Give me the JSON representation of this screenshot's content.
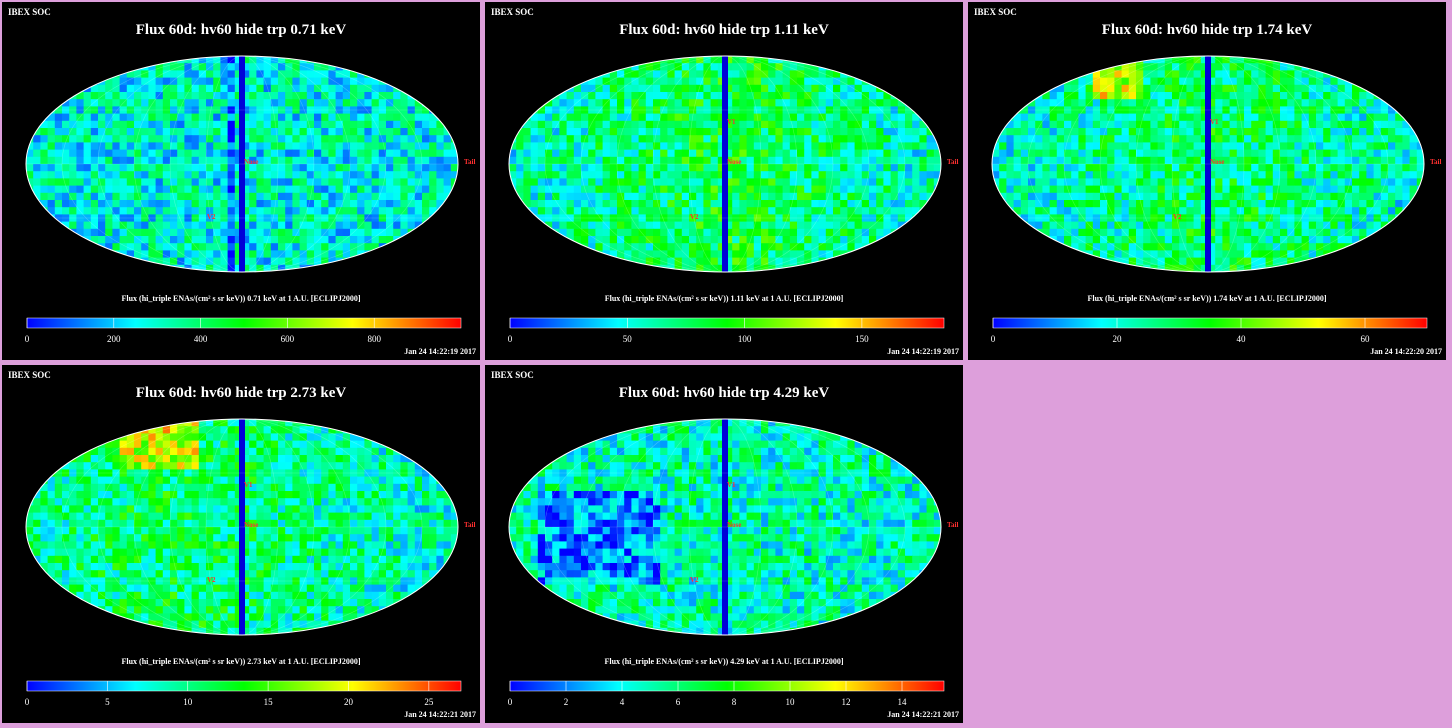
{
  "panels": [
    {
      "header": "IBEX SOC",
      "title": "Flux 60d: hv60 hide trp 0.71 keV",
      "caption": "Flux (hi_triple ENAs/(cm² s sr keV)) 0.71 keV at 1 A.U. [ECLIPJ2000]",
      "timestamp": "Jan 24 14:22:19 2017",
      "colorbar_ticks": [
        "0",
        "200",
        "400",
        "600",
        "800"
      ],
      "markers": [
        "V2",
        "Nose",
        "Tail"
      ]
    },
    {
      "header": "IBEX SOC",
      "title": "Flux 60d: hv60 hide trp 1.11 keV",
      "caption": "Flux (hi_triple ENAs/(cm² s sr keV)) 1.11 keV at 1 A.U. [ECLIPJ2000]",
      "timestamp": "Jan 24 14:22:19 2017",
      "colorbar_ticks": [
        "0",
        "50",
        "100",
        "150"
      ],
      "markers": [
        "V1",
        "V2",
        "Nose",
        "Tail"
      ]
    },
    {
      "header": "IBEX SOC",
      "title": "Flux 60d: hv60 hide trp 1.74 keV",
      "caption": "Flux (hi_triple ENAs/(cm² s sr keV)) 1.74 keV at 1 A.U. [ECLIPJ2000]",
      "timestamp": "Jan 24 14:22:20 2017",
      "colorbar_ticks": [
        "0",
        "20",
        "40",
        "60"
      ],
      "markers": [
        "V1",
        "V2",
        "Nose",
        "Tail"
      ]
    },
    {
      "header": "IBEX SOC",
      "title": "Flux 60d: hv60 hide trp 2.73 keV",
      "caption": "Flux (hi_triple ENAs/(cm² s sr keV)) 2.73 keV at 1 A.U. [ECLIPJ2000]",
      "timestamp": "Jan 24 14:22:21 2017",
      "colorbar_ticks": [
        "0",
        "5",
        "10",
        "15",
        "20",
        "25"
      ],
      "markers": [
        "V1",
        "V2",
        "Nose",
        "Tail"
      ]
    },
    {
      "header": "IBEX SOC",
      "title": "Flux 60d: hv60 hide trp 4.29 keV",
      "caption": "Flux (hi_triple ENAs/(cm² s sr keV)) 4.29 keV at 1 A.U. [ECLIPJ2000]",
      "timestamp": "Jan 24 14:22:21 2017",
      "colorbar_ticks": [
        "0",
        "2",
        "4",
        "6",
        "8",
        "10",
        "12",
        "14"
      ],
      "markers": [
        "V1",
        "V2",
        "Nose",
        "Tail"
      ]
    }
  ],
  "chart_data": [
    {
      "type": "heatmap",
      "projection": "Mollweide (all-sky)",
      "title": "Flux 60d: hv60 hide trp 0.71 keV",
      "colorbar_range": [
        0,
        1000
      ],
      "colormap": [
        "#0000ff",
        "#00ffff",
        "#00ff00",
        "#ffff00",
        "#ff0000"
      ],
      "grid": true,
      "longitude_labels": [
        "-60",
        "-30",
        "0",
        "-90",
        "120",
        "150",
        "180",
        "150",
        "60",
        "90"
      ],
      "latitude_labels": [
        "60",
        "30",
        "-30",
        "-60"
      ]
    },
    {
      "type": "heatmap",
      "projection": "Mollweide (all-sky)",
      "title": "Flux 60d: hv60 hide trp 1.11 keV",
      "colorbar_range": [
        0,
        185
      ],
      "colormap": [
        "#0000ff",
        "#00ffff",
        "#00ff00",
        "#ffff00",
        "#ff0000"
      ],
      "grid": true,
      "longitude_labels": [
        "60",
        "30",
        "0",
        "-60",
        "-90",
        "120",
        "-150",
        "180",
        "150",
        "120",
        "90"
      ],
      "latitude_labels": [
        "30",
        "-30",
        "-60"
      ]
    },
    {
      "type": "heatmap",
      "projection": "Mollweide (all-sky)",
      "title": "Flux 60d: hv60 hide trp 1.74 keV",
      "colorbar_range": [
        0,
        70
      ],
      "colormap": [
        "#0000ff",
        "#00ffff",
        "#00ff00",
        "#ffff00",
        "#ff0000"
      ],
      "grid": true,
      "longitude_labels": [
        "60",
        "30",
        "-60",
        "-90",
        "120",
        "150",
        "180",
        "120",
        "90"
      ],
      "latitude_labels": [
        "60",
        "30",
        "-30",
        "-60"
      ]
    },
    {
      "type": "heatmap",
      "projection": "Mollweide (all-sky)",
      "title": "Flux 60d: hv60 hide trp 2.73 keV",
      "colorbar_range": [
        0,
        27
      ],
      "colormap": [
        "#0000ff",
        "#00ffff",
        "#00ff00",
        "#ffff00",
        "#ff0000"
      ],
      "grid": true,
      "longitude_labels": [
        "60",
        "-60",
        "-90",
        "120",
        "150",
        "150",
        "120",
        "90"
      ],
      "latitude_labels": [
        "60",
        "30",
        "-30",
        "-60"
      ]
    },
    {
      "type": "heatmap",
      "projection": "Mollweide (all-sky)",
      "title": "Flux 60d: hv60 hide trp 4.29 keV",
      "colorbar_range": [
        0,
        15.5
      ],
      "colormap": [
        "#0000ff",
        "#00ffff",
        "#00ff00",
        "#ffff00",
        "#ff0000"
      ],
      "grid": true,
      "longitude_labels": [
        "-90",
        "120",
        "150",
        "180",
        "150",
        "90"
      ],
      "latitude_labels": [
        "30",
        "-30",
        "-60"
      ]
    }
  ]
}
